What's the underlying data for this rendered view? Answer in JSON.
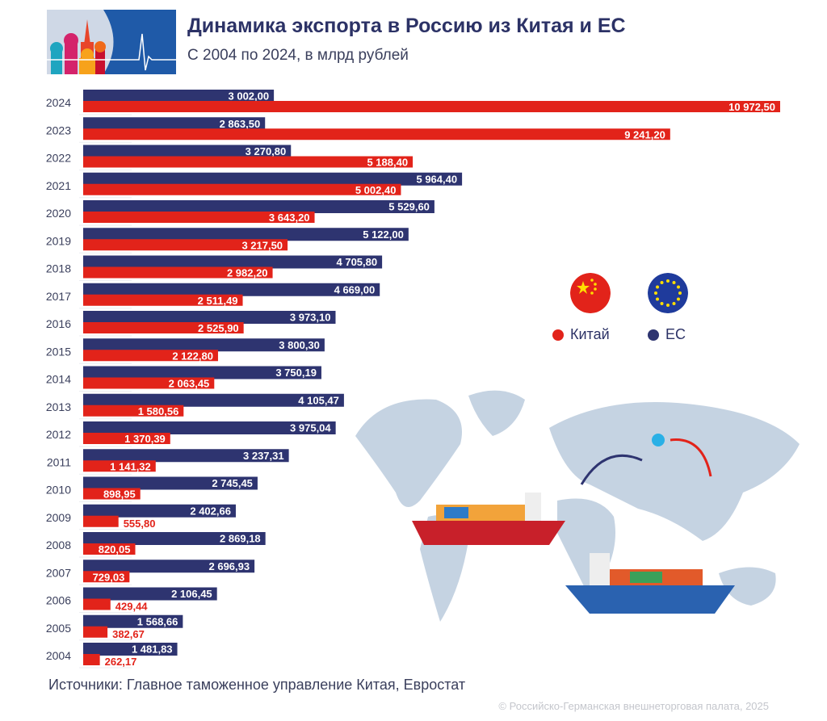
{
  "header": {
    "title": "Динамика экспорта в Россию из Китая и ЕС",
    "subtitle": "С 2004 по 2024, в млрд рублей"
  },
  "legend": {
    "items": [
      {
        "label": "Китай",
        "color": "#e2231a",
        "icon": "china-flag-icon"
      },
      {
        "label": "ЕС",
        "color": "#2e3470",
        "icon": "eu-flag-icon"
      }
    ]
  },
  "footer": {
    "source": "Источники: Главное таможенное управление Китая, Евростат",
    "copyright": "© Российско-Германская внешнеторговая палата, 2025"
  },
  "chart_data": {
    "type": "bar",
    "orientation": "horizontal",
    "title": "Динамика экспорта в Россию из Китая и ЕС",
    "subtitle": "С 2004 по 2024, в млрд рублей",
    "categories": [
      "2024",
      "2023",
      "2022",
      "2021",
      "2020",
      "2019",
      "2018",
      "2017",
      "2016",
      "2015",
      "2014",
      "2013",
      "2012",
      "2011",
      "2010",
      "2009",
      "2008",
      "2007",
      "2006",
      "2005",
      "2004"
    ],
    "series": [
      {
        "name": "ЕС",
        "color": "#2e3470",
        "values": [
          3002.0,
          2863.5,
          3270.8,
          5964.4,
          5529.6,
          5122.0,
          4705.8,
          4669.0,
          3973.1,
          3800.3,
          3750.19,
          4105.47,
          3975.04,
          3237.31,
          2745.45,
          2402.66,
          2869.18,
          2696.93,
          2106.45,
          1568.66,
          1481.83
        ],
        "labels": [
          "3 002,00",
          "2 863,50",
          "3 270,80",
          "5 964,40",
          "5 529,60",
          "5 122,00",
          "4 705,80",
          "4 669,00",
          "3 973,10",
          "3 800,30",
          "3 750,19",
          "4 105,47",
          "3 975,04",
          "3 237,31",
          "2 745,45",
          "2 402,66",
          "2 869,18",
          "2 696,93",
          "2 106,45",
          "1 568,66",
          "1 481,83"
        ]
      },
      {
        "name": "Китай",
        "color": "#e2231a",
        "values": [
          10972.5,
          9241.2,
          5188.4,
          5002.4,
          3643.2,
          3217.5,
          2982.2,
          2511.49,
          2525.9,
          2122.8,
          2063.45,
          1580.56,
          1370.39,
          1141.32,
          898.95,
          555.8,
          820.05,
          729.03,
          429.44,
          382.67,
          262.17
        ],
        "labels": [
          "10 972,50",
          "9 241,20",
          "5 188,40",
          "5 002,40",
          "3 643,20",
          "3 217,50",
          "2 982,20",
          "2 511,49",
          "2 525,90",
          "2 122,80",
          "2 063,45",
          "1 580,56",
          "1 370,39",
          "1 141,32",
          "898,95",
          "555,80",
          "820,05",
          "729,03",
          "429,44",
          "382,67",
          "262,17"
        ]
      }
    ],
    "xlim": [
      0,
      10972.5
    ],
    "grid": false,
    "legend_position": "right"
  }
}
